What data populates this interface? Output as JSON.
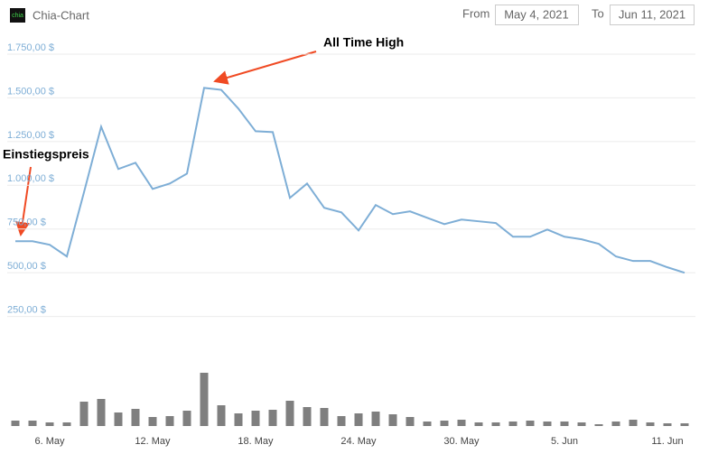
{
  "header": {
    "logo": "chia",
    "title": "Chia-Chart",
    "from_label": "From",
    "from_value": "May 4, 2021",
    "to_label": "To",
    "to_value": "Jun 11, 2021"
  },
  "chart_data": {
    "type": "line",
    "categories": [
      null,
      null,
      "6. May",
      null,
      null,
      null,
      null,
      null,
      "12. May",
      null,
      null,
      null,
      null,
      null,
      "18. May",
      null,
      null,
      null,
      null,
      null,
      "24. May",
      null,
      null,
      null,
      null,
      null,
      "30. May",
      null,
      null,
      null,
      null,
      null,
      "5. Jun",
      null,
      null,
      null,
      null,
      null,
      "11. Jun",
      null
    ],
    "series": [
      {
        "color": "#7eaed6",
        "values": [
          680,
          680,
          660,
          593,
          960,
          1335,
          1093,
          1129,
          979,
          1010,
          1067,
          1557,
          1546,
          1438,
          1309,
          1304,
          928,
          1010,
          871,
          845,
          742,
          887,
          835,
          851,
          814,
          778,
          804,
          794,
          784,
          706,
          706,
          747,
          706,
          691,
          665,
          593,
          567,
          567,
          531,
          500
        ]
      }
    ],
    "volume": {
      "color": "#7f7f7f",
      "ylim": [
        0,
        60
      ],
      "values": [
        6,
        6,
        4,
        4,
        27,
        30,
        15,
        19,
        10,
        11,
        17,
        59,
        23,
        14,
        17,
        18,
        28,
        21,
        20,
        11,
        14,
        16,
        13,
        10,
        5,
        6,
        7,
        4,
        4,
        5,
        6,
        5,
        5,
        4,
        2,
        5,
        7,
        4,
        3,
        3
      ]
    },
    "ylim": [
      0,
      1750
    ],
    "yticks": [
      {
        "value": 250,
        "label": "250,00 $"
      },
      {
        "value": 500,
        "label": "500,00 $"
      },
      {
        "value": 750,
        "label": "750,00 $"
      },
      {
        "value": 1000,
        "label": "1.000,00 $"
      },
      {
        "value": 1250,
        "label": "1.250,00 $"
      },
      {
        "value": 1500,
        "label": "1.500,00 $"
      },
      {
        "value": 1750,
        "label": "1.750,00 $"
      }
    ],
    "grid": true,
    "annotations": [
      "All Time High",
      "Einstiegspreis"
    ]
  }
}
